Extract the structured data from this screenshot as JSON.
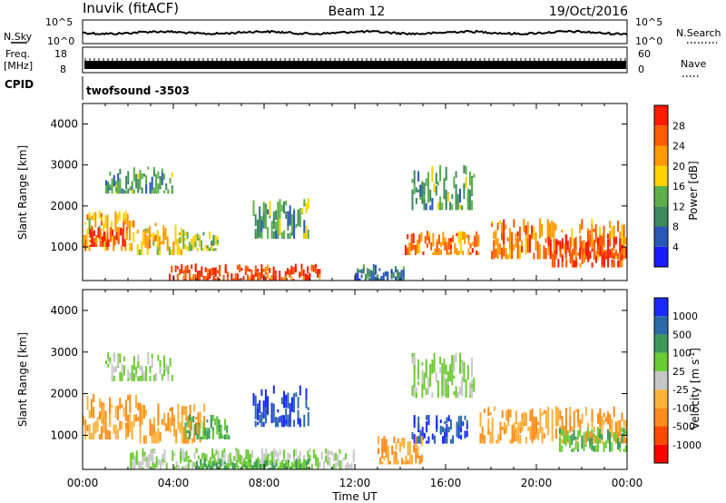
{
  "header": {
    "site": "Inuvik (fitACF)",
    "beam": "Beam 12",
    "date": "19/Oct/2016"
  },
  "side_labels": {
    "nsky": "N.Sky",
    "nsky_hi": "10^5",
    "nsky_lo": "10^0",
    "nsearch": "N.Search",
    "nsearch_hi": "10^5",
    "nsearch_lo": "10^0",
    "freq_line1": "Freq.",
    "freq_line2": "[MHz]",
    "freq_hi": "18",
    "freq_lo": "8",
    "nave_hi": "60",
    "nave_lo": "0",
    "nave": "Nave",
    "cpid": "CPID",
    "cpid_value": "twofsound -3503"
  },
  "colors": {
    "power_scale": [
      "#1a1aff",
      "#2a58b8",
      "#3d8a5e",
      "#5bb04a",
      "#ffd200",
      "#ff9a00",
      "#ff5a00",
      "#ff1a00"
    ],
    "velocity_scale": [
      "#ff0000",
      "#ff4a00",
      "#ff8c1a",
      "#ffb23a",
      "#c8c8c8",
      "#6ccc33",
      "#3c9b5c",
      "#2a6aa8",
      "#1a2aff"
    ]
  },
  "chart_data": [
    {
      "type": "heatmap",
      "title": "",
      "xlabel": "",
      "ylabel": "Slant Range [km]",
      "xlim": [
        "00:00",
        "24:00"
      ],
      "ylim": [
        180,
        4500
      ],
      "x_ticks": [
        "00:00",
        "04:00",
        "08:00",
        "12:00",
        "16:00",
        "20:00",
        "00:00"
      ],
      "y_ticks": [
        1000,
        2000,
        3000,
        4000
      ],
      "colorbar_label": "Power [dB]",
      "colorbar_ticks": [
        4,
        8,
        12,
        16,
        20,
        24,
        28
      ],
      "regions": [
        {
          "t0": 0.0,
          "t1": 2.3,
          "r0": 900,
          "r1": 1900,
          "level": 20
        },
        {
          "t0": 0.3,
          "t1": 2.0,
          "r0": 1000,
          "r1": 1500,
          "level": 28
        },
        {
          "t0": 2.3,
          "t1": 4.5,
          "r0": 800,
          "r1": 1600,
          "level": 20
        },
        {
          "t0": 4.5,
          "t1": 6.0,
          "r0": 900,
          "r1": 1400,
          "level": 16
        },
        {
          "t0": 3.8,
          "t1": 10.5,
          "r0": 180,
          "r1": 600,
          "level": 28
        },
        {
          "t0": 1.0,
          "t1": 4.0,
          "r0": 2300,
          "r1": 3000,
          "level": 12
        },
        {
          "t0": 7.5,
          "t1": 10.0,
          "r0": 1200,
          "r1": 2200,
          "level": 12
        },
        {
          "t0": 14.2,
          "t1": 17.5,
          "r0": 800,
          "r1": 1400,
          "level": 24
        },
        {
          "t0": 14.5,
          "t1": 17.3,
          "r0": 1900,
          "r1": 3000,
          "level": 12
        },
        {
          "t0": 18.0,
          "t1": 24.0,
          "r0": 700,
          "r1": 1700,
          "level": 24
        },
        {
          "t0": 20.5,
          "t1": 24.0,
          "r0": 500,
          "r1": 1300,
          "level": 28
        },
        {
          "t0": 12.0,
          "t1": 14.2,
          "r0": 180,
          "r1": 600,
          "level": 8
        }
      ]
    },
    {
      "type": "heatmap",
      "title": "",
      "xlabel": "Time UT",
      "ylabel": "Slant Range [km]",
      "xlim": [
        "00:00",
        "24:00"
      ],
      "ylim": [
        180,
        4500
      ],
      "x_ticks": [
        "00:00",
        "04:00",
        "08:00",
        "12:00",
        "16:00",
        "20:00",
        "00:00"
      ],
      "y_ticks": [
        1000,
        2000,
        3000,
        4000
      ],
      "colorbar_label": "Velocity [m s^-1]",
      "colorbar_ticks": [
        "-1000",
        "-500",
        "-100",
        "-25",
        "25",
        "100",
        "500",
        "1000"
      ],
      "regions": [
        {
          "t0": 0.0,
          "t1": 2.5,
          "r0": 900,
          "r1": 2000,
          "level": -100
        },
        {
          "t0": 2.5,
          "t1": 5.5,
          "r0": 800,
          "r1": 1800,
          "level": -100
        },
        {
          "t0": 4.5,
          "t1": 6.5,
          "r0": 900,
          "r1": 1500,
          "level": 100
        },
        {
          "t0": 2.0,
          "t1": 12.0,
          "r0": 180,
          "r1": 700,
          "level": 25
        },
        {
          "t0": 5.0,
          "t1": 10.0,
          "r0": 180,
          "r1": 450,
          "level": 100
        },
        {
          "t0": 7.5,
          "t1": 10.0,
          "r0": 1200,
          "r1": 2200,
          "level": 1000
        },
        {
          "t0": 1.0,
          "t1": 4.0,
          "r0": 2300,
          "r1": 3000,
          "level": 25
        },
        {
          "t0": 14.5,
          "t1": 17.0,
          "r0": 800,
          "r1": 1500,
          "level": 1000
        },
        {
          "t0": 13.0,
          "t1": 15.0,
          "r0": 300,
          "r1": 1000,
          "level": -100
        },
        {
          "t0": 14.5,
          "t1": 17.3,
          "r0": 1900,
          "r1": 3000,
          "level": 25
        },
        {
          "t0": 17.5,
          "t1": 24.0,
          "r0": 800,
          "r1": 1700,
          "level": -100
        },
        {
          "t0": 21.0,
          "t1": 24.0,
          "r0": 600,
          "r1": 1200,
          "level": 100
        }
      ]
    }
  ]
}
